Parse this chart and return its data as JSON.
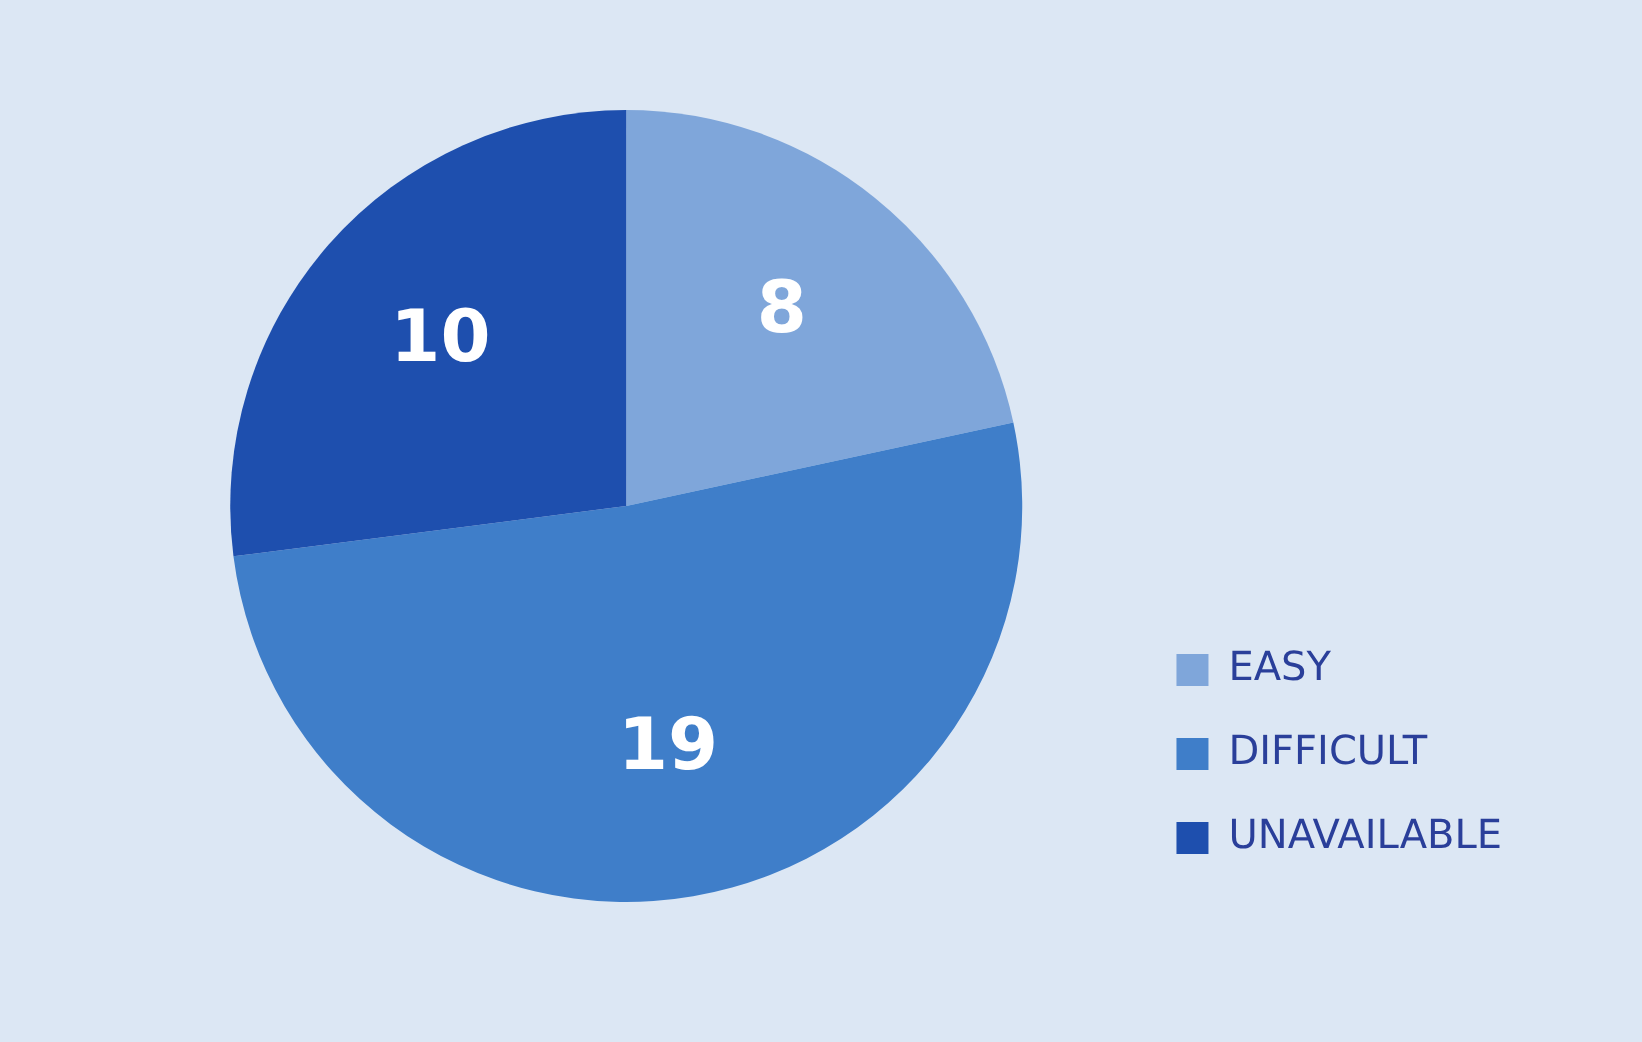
{
  "chart_data": {
    "type": "pie",
    "categories": [
      "EASY",
      "DIFFICULT",
      "UNAVAILABLE"
    ],
    "values": [
      8,
      19,
      10
    ],
    "colors": [
      "#7fa6da",
      "#3f7ec9",
      "#1e4fae"
    ],
    "data_labels": true,
    "legend": "bottom right"
  }
}
